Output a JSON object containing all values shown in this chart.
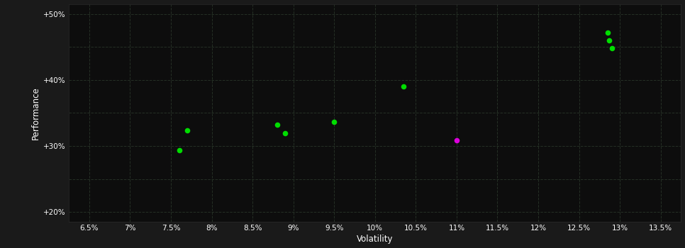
{
  "background_color": "#1a1a1a",
  "plot_bg_color": "#0d0d0d",
  "text_color": "#ffffff",
  "xlabel": "Volatility",
  "ylabel": "Performance",
  "xlim": [
    0.0625,
    0.1375
  ],
  "ylim": [
    0.185,
    0.515
  ],
  "xticks": [
    0.065,
    0.07,
    0.075,
    0.08,
    0.085,
    0.09,
    0.095,
    0.1,
    0.105,
    0.11,
    0.115,
    0.12,
    0.125,
    0.13,
    0.135
  ],
  "yticks": [
    0.2,
    0.25,
    0.3,
    0.35,
    0.4,
    0.45,
    0.5
  ],
  "ytick_labels": [
    "+20%",
    "",
    "+30%",
    "",
    "+40%",
    "",
    "+50%"
  ],
  "xtick_labels": [
    "6.5%",
    "7%",
    "7.5%",
    "8%",
    "8.5%",
    "9%",
    "9.5%",
    "10%",
    "10.5%",
    "11%",
    "11.5%",
    "12%",
    "12.5%",
    "13%",
    "13.5%"
  ],
  "green_points": [
    [
      0.077,
      0.323
    ],
    [
      0.076,
      0.293
    ],
    [
      0.088,
      0.332
    ],
    [
      0.089,
      0.319
    ],
    [
      0.095,
      0.336
    ],
    [
      0.1035,
      0.39
    ],
    [
      0.1285,
      0.472
    ],
    [
      0.1287,
      0.46
    ],
    [
      0.129,
      0.448
    ]
  ],
  "magenta_points": [
    [
      0.11,
      0.309
    ]
  ],
  "green_color": "#00dd00",
  "magenta_color": "#dd00dd",
  "point_size": 30
}
